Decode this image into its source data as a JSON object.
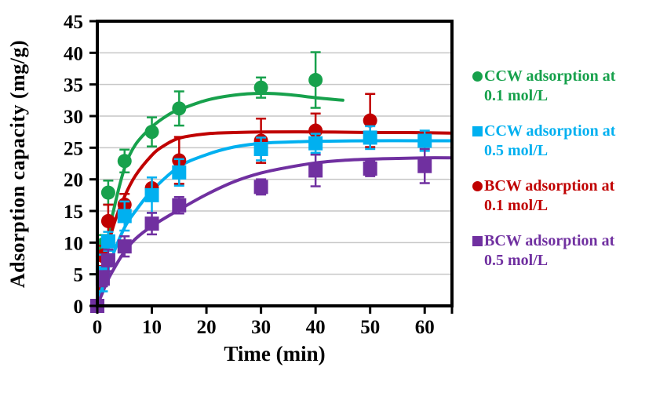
{
  "chart_data": {
    "type": "scatter",
    "title": "",
    "xlabel": "Time (min)",
    "ylabel": "Adsorption capacity (mg/g)",
    "xlim": [
      0,
      65
    ],
    "ylim": [
      0,
      45
    ],
    "x_ticks": [
      0,
      10,
      20,
      30,
      40,
      50,
      60
    ],
    "y_ticks": [
      0,
      5,
      10,
      15,
      20,
      25,
      30,
      35,
      40,
      45
    ],
    "grid": "horizontal-gray",
    "grid_color": "#c6c6c6",
    "frame_color": "#000000",
    "legend_position": "right",
    "series": [
      {
        "name": "CCW adsorption at 0.1 mol/L",
        "legend_line1": "CCW adsorption at",
        "legend_line2": "0.1 mol/L",
        "marker": "circle",
        "color": "#17a14c",
        "x": [
          0,
          1,
          2,
          5,
          10,
          15,
          30,
          40
        ],
        "y": [
          0,
          9.7,
          17.9,
          22.9,
          27.5,
          31.2,
          34.5,
          35.7
        ],
        "yerr": [
          0,
          1.5,
          1.9,
          1.8,
          2.3,
          2.7,
          1.6,
          4.4
        ],
        "fit_line": {
          "x": [
            0,
            1,
            2,
            3,
            5,
            7,
            10,
            13,
            15,
            20,
            25,
            30,
            35,
            40,
            45
          ],
          "y": [
            0,
            5.5,
            10.8,
            15.2,
            21.8,
            25.5,
            28.3,
            30.2,
            31.0,
            32.5,
            33.3,
            33.6,
            33.4,
            32.9,
            32.5
          ]
        }
      },
      {
        "name": "CCW adsorption at 0.5 mol/L",
        "legend_line1": "CCW adsorption at",
        "legend_line2": "0.5 mol/L",
        "marker": "square",
        "color": "#00b0f0",
        "x": [
          0,
          1,
          2,
          5,
          10,
          15,
          30,
          40,
          50,
          60
        ],
        "y": [
          0,
          5.2,
          10.2,
          14.2,
          17.5,
          21.1,
          24.8,
          25.7,
          26.6,
          26.1
        ],
        "yerr": [
          0,
          2.9,
          1.5,
          2.3,
          2.8,
          2.1,
          1.8,
          1.5,
          1.8,
          1.6
        ],
        "fit_line": {
          "x": [
            0,
            1,
            2,
            3,
            5,
            7,
            10,
            15,
            20,
            25,
            30,
            35,
            40,
            50,
            60,
            65
          ],
          "y": [
            0,
            3.2,
            6.0,
            8.4,
            12.4,
            15.0,
            18.2,
            22.0,
            23.9,
            25.1,
            25.7,
            25.9,
            26.0,
            26.1,
            26.1,
            26.1
          ]
        }
      },
      {
        "name": "BCW adsorption at 0.1 mol/L",
        "legend_line1": "BCW adsorption at",
        "legend_line2": "0.1 mol/L",
        "marker": "circle",
        "color": "#c00000",
        "x": [
          0,
          1,
          2,
          5,
          10,
          15,
          30,
          40,
          50
        ],
        "y": [
          0,
          7.9,
          13.4,
          16.0,
          18.6,
          23.0,
          26.1,
          27.7,
          29.3
        ],
        "yerr": [
          0,
          1.6,
          2.6,
          1.7,
          1.7,
          3.7,
          3.5,
          2.7,
          4.2
        ],
        "fit_line": {
          "x": [
            0,
            1,
            2,
            3,
            5,
            7,
            10,
            12,
            15,
            20,
            25,
            30,
            40,
            50,
            57,
            65
          ],
          "y": [
            0,
            4.8,
            9.3,
            12.8,
            17.3,
            20.6,
            23.8,
            25.2,
            26.5,
            27.2,
            27.4,
            27.5,
            27.5,
            27.4,
            27.4,
            27.3
          ]
        }
      },
      {
        "name": "BCW adsorption at 0.5 mol/L",
        "legend_line1": "BCW adsorption at",
        "legend_line2": "0.5 mol/L",
        "marker": "square",
        "color": "#7030a0",
        "x": [
          0,
          1,
          2,
          5,
          10,
          15,
          30,
          40,
          50,
          60
        ],
        "y": [
          0,
          4.3,
          7.2,
          9.4,
          13.0,
          15.9,
          18.8,
          21.4,
          21.7,
          22.1
        ],
        "yerr": [
          0,
          1.2,
          1.7,
          1.6,
          1.7,
          1.3,
          1.2,
          2.5,
          1.2,
          2.7
        ],
        "fit_line": {
          "x": [
            0,
            1,
            2,
            3,
            5,
            7,
            10,
            15,
            20,
            25,
            30,
            35,
            40,
            45,
            50,
            55,
            60,
            65
          ],
          "y": [
            0,
            2.2,
            4.2,
            5.8,
            8.6,
            10.6,
            12.6,
            15.2,
            17.6,
            19.6,
            21.0,
            21.9,
            22.6,
            23.0,
            23.2,
            23.3,
            23.4,
            23.4
          ]
        }
      }
    ],
    "draw_order": [
      0,
      2,
      1,
      3
    ]
  }
}
